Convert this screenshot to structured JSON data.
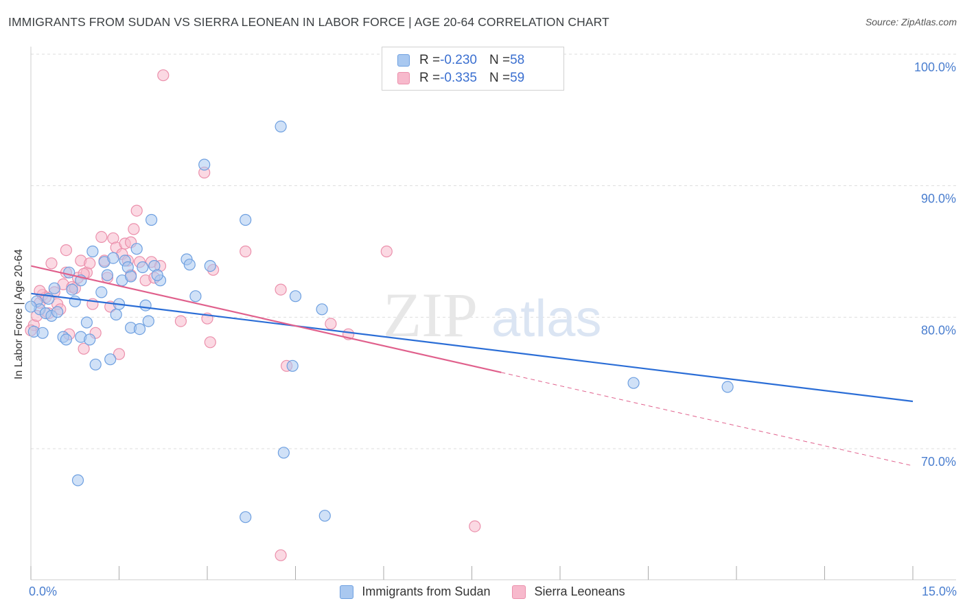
{
  "header": {
    "title": "IMMIGRANTS FROM SUDAN VS SIERRA LEONEAN IN LABOR FORCE | AGE 20-64 CORRELATION CHART",
    "source": "Source: ZipAtlas.com"
  },
  "watermark": {
    "zip": "ZIP",
    "atlas": "atlas"
  },
  "legend": {
    "series1": {
      "r_label": "R = ",
      "r_value": "-0.230",
      "n_label": "N = ",
      "n_value": "58"
    },
    "series2": {
      "r_label": "R = ",
      "r_value": "-0.335",
      "n_label": "N = ",
      "n_value": "59"
    }
  },
  "colors": {
    "blue_fill": "#a9c8f0",
    "blue_stroke": "#6d9fe0",
    "blue_line": "#2a6dd6",
    "pink_fill": "#f7b9cc",
    "pink_stroke": "#eb8fab",
    "pink_line": "#e0608c",
    "grid": "#dddddd",
    "axis_text": "#4a7ecf"
  },
  "chart_data": {
    "type": "scatter",
    "title": "IMMIGRANTS FROM SUDAN VS SIERRA LEONEAN IN LABOR FORCE | AGE 20-64 CORRELATION CHART",
    "xlabel": "",
    "ylabel": "In Labor Force | Age 20-64",
    "xlim": [
      0,
      15
    ],
    "ylim": [
      60,
      102
    ],
    "x_tick_labels": [
      "0.0%",
      "15.0%"
    ],
    "y_ticks": [
      70,
      80,
      90,
      100
    ],
    "y_tick_labels": [
      "70.0%",
      "80.0%",
      "90.0%",
      "100.0%"
    ],
    "grid": true,
    "series": [
      {
        "name": "Immigrants from Sudan",
        "color": "blue",
        "trend": {
          "x": [
            0,
            15
          ],
          "y": [
            81.8,
            73.6
          ],
          "dashed_after": null
        },
        "points": [
          [
            0.05,
            78.9
          ],
          [
            0.1,
            81.2
          ],
          [
            0.15,
            80.6
          ],
          [
            0.2,
            78.8
          ],
          [
            0.25,
            80.3
          ],
          [
            0.3,
            81.4
          ],
          [
            0.35,
            80.1
          ],
          [
            0.4,
            82.2
          ],
          [
            0.45,
            80.4
          ],
          [
            0.55,
            78.5
          ],
          [
            0.6,
            78.3
          ],
          [
            0.65,
            83.4
          ],
          [
            0.7,
            82.1
          ],
          [
            0.75,
            81.2
          ],
          [
            0.85,
            82.8
          ],
          [
            0.85,
            78.5
          ],
          [
            0.95,
            79.6
          ],
          [
            1.0,
            78.3
          ],
          [
            1.05,
            85.0
          ],
          [
            1.1,
            76.4
          ],
          [
            1.2,
            81.9
          ],
          [
            1.25,
            84.2
          ],
          [
            1.3,
            83.2
          ],
          [
            1.35,
            76.8
          ],
          [
            1.4,
            84.5
          ],
          [
            1.45,
            80.2
          ],
          [
            1.5,
            81.0
          ],
          [
            1.55,
            82.8
          ],
          [
            1.6,
            84.3
          ],
          [
            1.65,
            83.8
          ],
          [
            1.7,
            83.1
          ],
          [
            1.7,
            79.2
          ],
          [
            1.8,
            85.2
          ],
          [
            1.85,
            79.1
          ],
          [
            1.9,
            83.8
          ],
          [
            1.95,
            80.9
          ],
          [
            2.0,
            79.7
          ],
          [
            2.05,
            87.4
          ],
          [
            2.1,
            83.9
          ],
          [
            2.2,
            82.8
          ],
          [
            2.15,
            83.2
          ],
          [
            2.65,
            84.4
          ],
          [
            2.7,
            84.0
          ],
          [
            2.8,
            81.6
          ],
          [
            2.95,
            91.6
          ],
          [
            3.05,
            83.9
          ],
          [
            3.65,
            87.4
          ],
          [
            4.25,
            94.5
          ],
          [
            4.45,
            76.3
          ],
          [
            4.5,
            81.6
          ],
          [
            4.95,
            80.6
          ],
          [
            5.0,
            64.9
          ],
          [
            0.8,
            67.6
          ],
          [
            3.65,
            64.8
          ],
          [
            4.3,
            69.7
          ],
          [
            10.25,
            75.0
          ],
          [
            11.85,
            74.7
          ],
          [
            0.0,
            80.8
          ]
        ]
      },
      {
        "name": "Sierra Leoneans",
        "color": "pink",
        "trend": {
          "x": [
            0,
            8.0
          ],
          "y": [
            83.9,
            75.8
          ],
          "dashed_x": [
            8.0,
            15
          ],
          "dashed_y": [
            75.8,
            68.7
          ]
        },
        "points": [
          [
            0.05,
            79.4
          ],
          [
            0.1,
            80.1
          ],
          [
            0.15,
            81.1
          ],
          [
            0.2,
            81.7
          ],
          [
            0.25,
            81.5
          ],
          [
            0.3,
            80.3
          ],
          [
            0.35,
            84.1
          ],
          [
            0.4,
            81.9
          ],
          [
            0.45,
            81.0
          ],
          [
            0.5,
            80.6
          ],
          [
            0.55,
            82.5
          ],
          [
            0.6,
            83.4
          ],
          [
            0.6,
            85.1
          ],
          [
            0.65,
            78.7
          ],
          [
            0.7,
            82.3
          ],
          [
            0.75,
            82.2
          ],
          [
            0.8,
            83.0
          ],
          [
            0.85,
            84.3
          ],
          [
            0.9,
            77.6
          ],
          [
            0.95,
            83.4
          ],
          [
            1.0,
            84.1
          ],
          [
            1.05,
            81.0
          ],
          [
            1.1,
            78.8
          ],
          [
            1.2,
            86.1
          ],
          [
            1.25,
            84.3
          ],
          [
            1.3,
            83.0
          ],
          [
            1.35,
            80.8
          ],
          [
            1.4,
            86.0
          ],
          [
            1.45,
            85.3
          ],
          [
            1.5,
            77.2
          ],
          [
            1.55,
            84.8
          ],
          [
            1.6,
            85.6
          ],
          [
            1.65,
            84.3
          ],
          [
            1.7,
            83.2
          ],
          [
            1.75,
            86.7
          ],
          [
            1.8,
            88.1
          ],
          [
            1.85,
            84.2
          ],
          [
            1.95,
            82.8
          ],
          [
            2.05,
            84.2
          ],
          [
            2.1,
            83.0
          ],
          [
            2.2,
            83.9
          ],
          [
            2.25,
            98.4
          ],
          [
            2.55,
            79.7
          ],
          [
            2.95,
            91.0
          ],
          [
            3.0,
            79.9
          ],
          [
            3.05,
            78.1
          ],
          [
            3.1,
            83.6
          ],
          [
            3.65,
            85.0
          ],
          [
            4.25,
            82.1
          ],
          [
            4.35,
            76.3
          ],
          [
            5.1,
            79.5
          ],
          [
            5.4,
            78.7
          ],
          [
            6.05,
            85.0
          ],
          [
            7.55,
            64.1
          ],
          [
            4.25,
            61.9
          ],
          [
            0.15,
            82.0
          ],
          [
            0.9,
            83.3
          ],
          [
            1.7,
            85.7
          ],
          [
            0.0,
            79.0
          ]
        ]
      }
    ]
  },
  "axis": {
    "y_title": "In Labor Force | Age 20-64",
    "x_left_label": "0.0%",
    "x_right_label": "15.0%"
  },
  "bottom_legend": {
    "series1_label": "Immigrants from Sudan",
    "series2_label": "Sierra Leoneans"
  }
}
